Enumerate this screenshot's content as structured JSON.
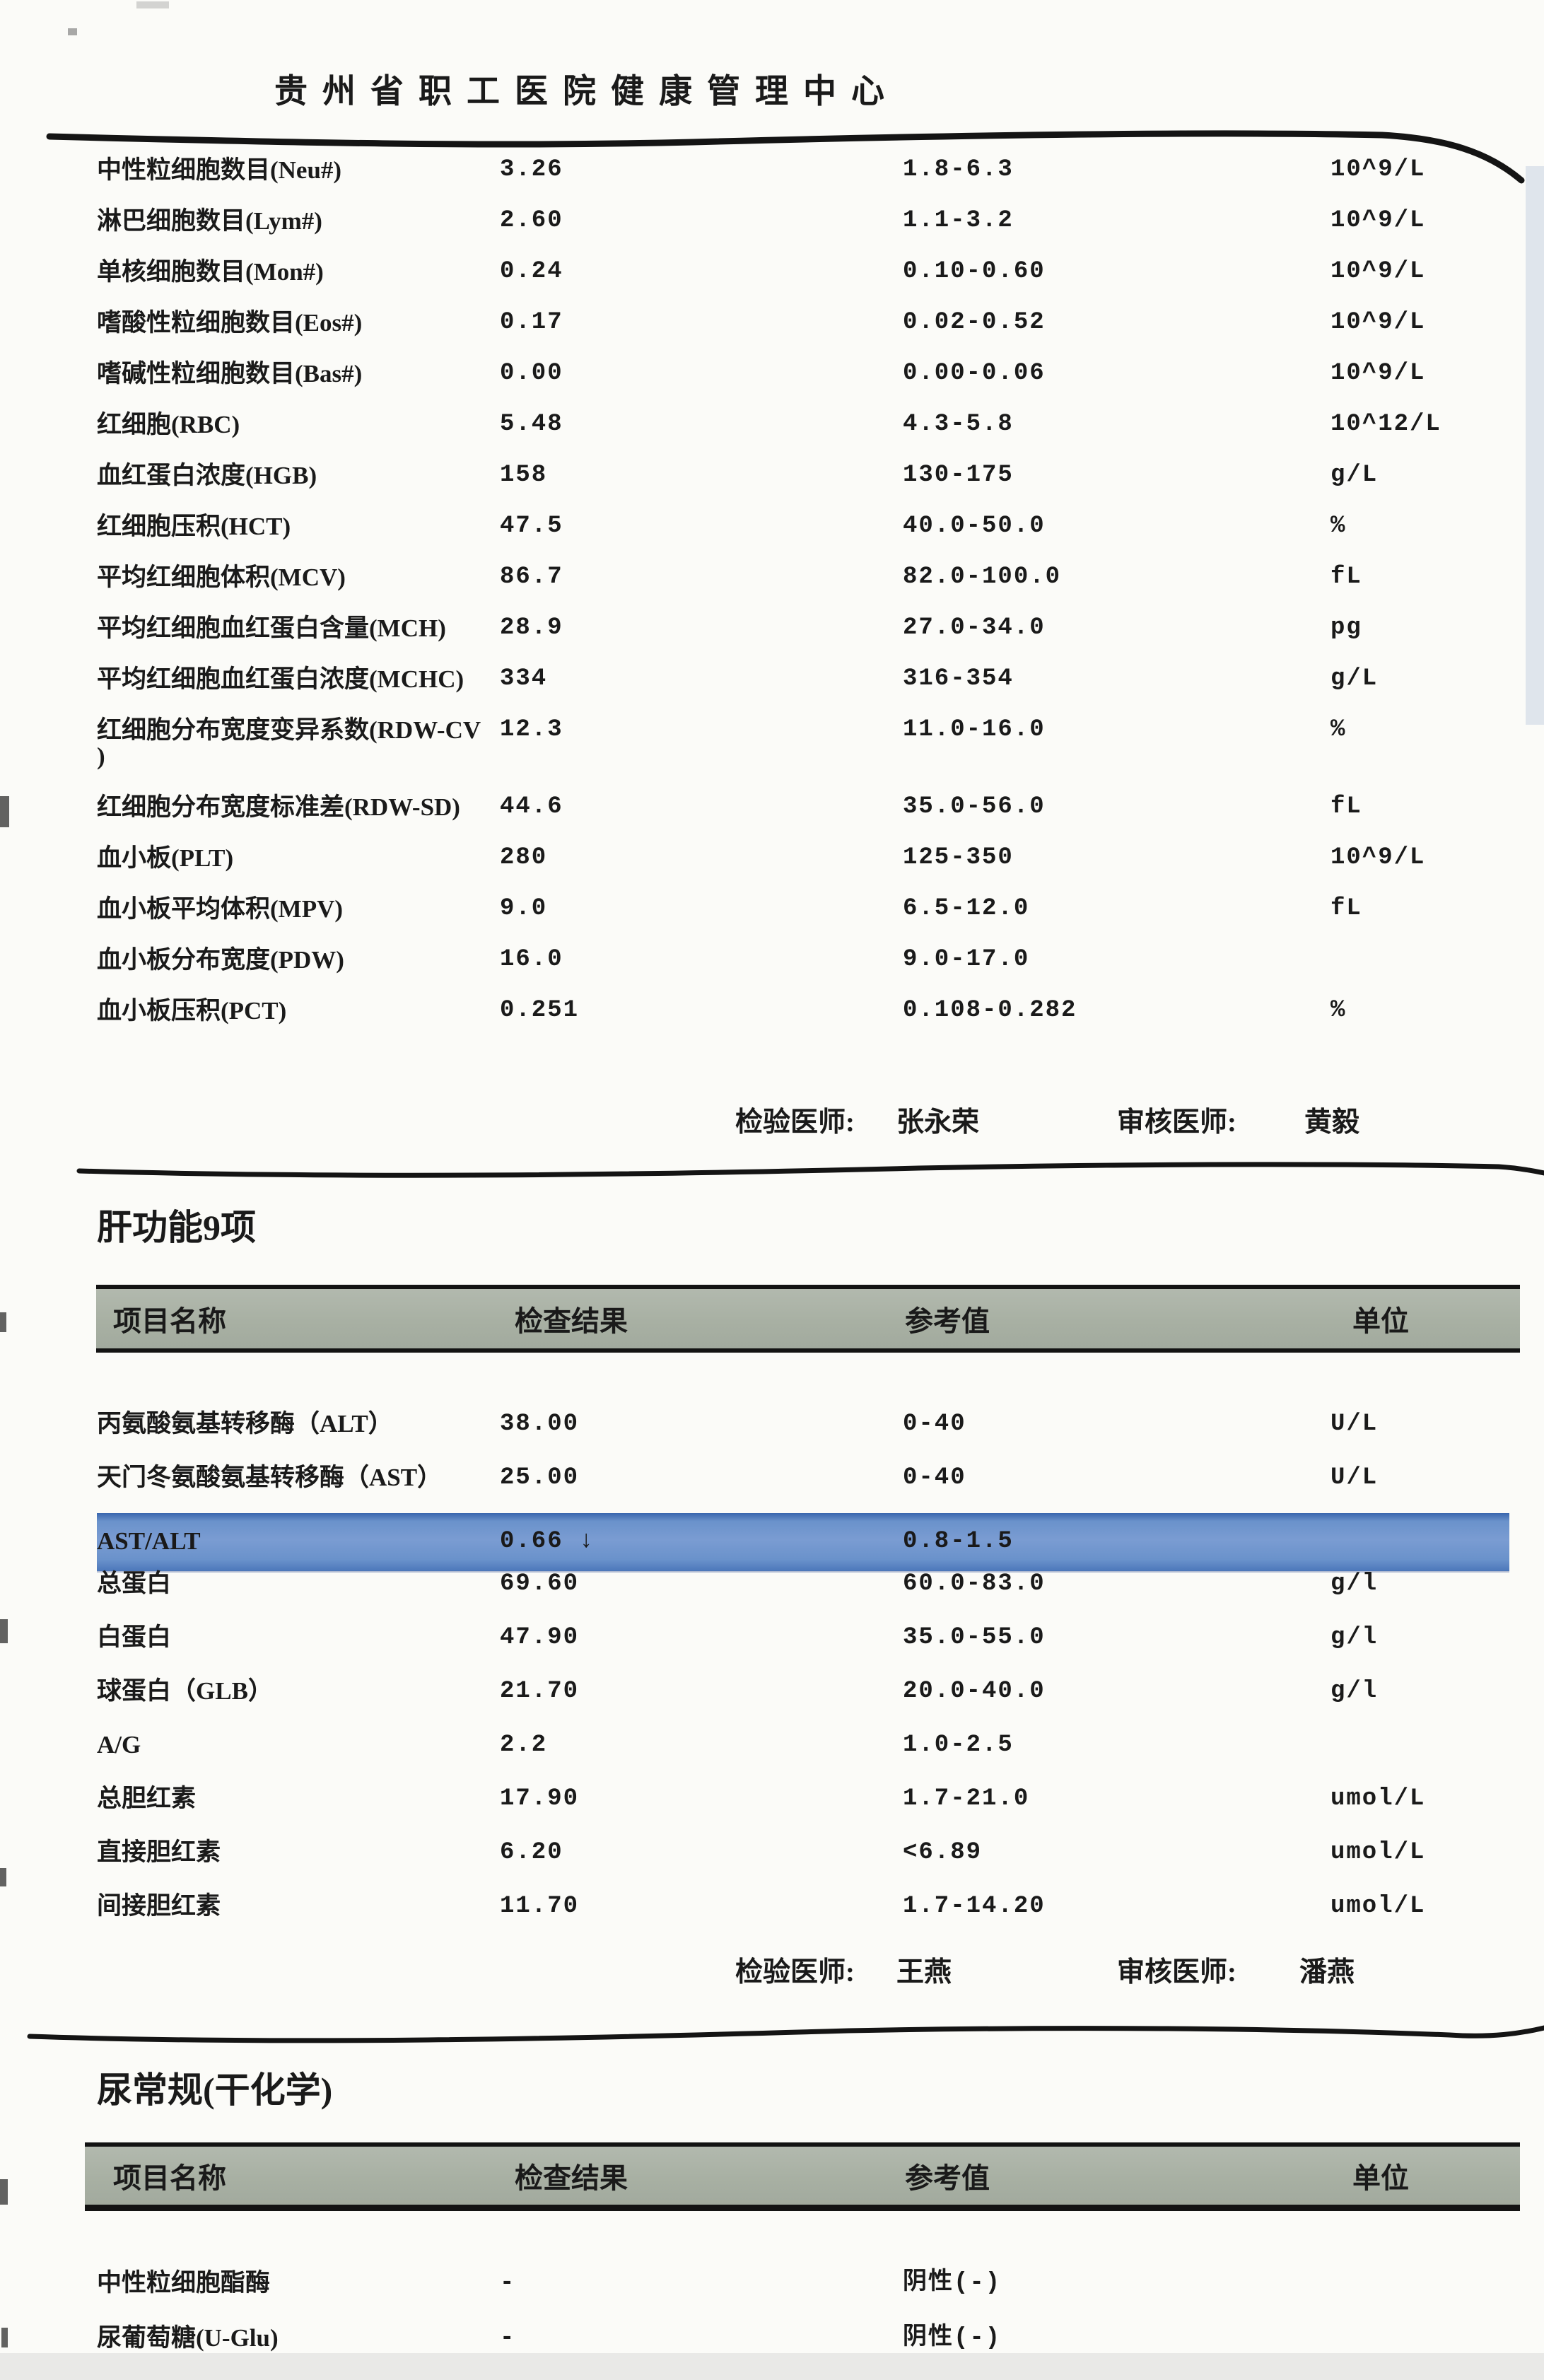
{
  "header": {
    "hospital_title": "贵州省职工医院健康管理中心"
  },
  "colors": {
    "highlight_blue": "#6a92cb",
    "header_bar_gray": "#a8b0a3",
    "rule_black": "#141414"
  },
  "tables": [
    {
      "section_title": "",
      "rows": [
        {
          "name": "中性粒细胞数目(Neu#)",
          "result": "3.26",
          "ref": "1.8-6.3",
          "unit": "10^9/L"
        },
        {
          "name": "淋巴细胞数目(Lym#)",
          "result": "2.60",
          "ref": "1.1-3.2",
          "unit": "10^9/L"
        },
        {
          "name": "单核细胞数目(Mon#)",
          "result": "0.24",
          "ref": "0.10-0.60",
          "unit": "10^9/L"
        },
        {
          "name": "嗜酸性粒细胞数目(Eos#)",
          "result": "0.17",
          "ref": "0.02-0.52",
          "unit": "10^9/L"
        },
        {
          "name": "嗜碱性粒细胞数目(Bas#)",
          "result": "0.00",
          "ref": "0.00-0.06",
          "unit": "10^9/L"
        },
        {
          "name": "红细胞(RBC)",
          "result": "5.48",
          "ref": "4.3-5.8",
          "unit": "10^12/L"
        },
        {
          "name": "血红蛋白浓度(HGB)",
          "result": "158",
          "ref": "130-175",
          "unit": "g/L"
        },
        {
          "name": "红细胞压积(HCT)",
          "result": "47.5",
          "ref": "40.0-50.0",
          "unit": "%"
        },
        {
          "name": "平均红细胞体积(MCV)",
          "result": "86.7",
          "ref": "82.0-100.0",
          "unit": "fL"
        },
        {
          "name": "平均红细胞血红蛋白含量(MCH)",
          "result": "28.9",
          "ref": "27.0-34.0",
          "unit": "pg"
        },
        {
          "name": "平均红细胞血红蛋白浓度(MCHC)",
          "result": "334",
          "ref": "316-354",
          "unit": "g/L"
        },
        {
          "name": "红细胞分布宽度变异系数(RDW-CV\n)",
          "result": "12.3",
          "ref": "11.0-16.0",
          "unit": "%"
        },
        {
          "name": "红细胞分布宽度标准差(RDW-SD)",
          "result": "44.6",
          "ref": "35.0-56.0",
          "unit": "fL"
        },
        {
          "name": "血小板(PLT)",
          "result": "280",
          "ref": "125-350",
          "unit": "10^9/L"
        },
        {
          "name": "血小板平均体积(MPV)",
          "result": "9.0",
          "ref": "6.5-12.0",
          "unit": "fL"
        },
        {
          "name": "血小板分布宽度(PDW)",
          "result": "16.0",
          "ref": "9.0-17.0",
          "unit": ""
        },
        {
          "name": "血小板压积(PCT)",
          "result": "0.251",
          "ref": "0.108-0.282",
          "unit": "%"
        }
      ],
      "signature": {
        "examiner_label": "检验医师:",
        "examiner": "张永荣",
        "reviewer_label": "审核医师:",
        "reviewer": "黄毅"
      }
    },
    {
      "section_title": "肝功能9项",
      "header": {
        "name": "项目名称",
        "result": "检查结果",
        "ref": "参考值",
        "unit": "单位"
      },
      "rows": [
        {
          "name": "丙氨酸氨基转移酶（ALT）",
          "result": "38.00",
          "ref": "0-40",
          "unit": "U/L"
        },
        {
          "name": "天门冬氨酸氨基转移酶（AST）",
          "result": "25.00",
          "ref": "0-40",
          "unit": "U/L"
        },
        {
          "name": "AST/ALT",
          "result": "0.66 ↓",
          "ref": "0.8-1.5",
          "unit": "",
          "highlight": true
        },
        {
          "name": "总蛋白",
          "result": "69.60",
          "ref": "60.0-83.0",
          "unit": "g/l"
        },
        {
          "name": "白蛋白",
          "result": "47.90",
          "ref": "35.0-55.0",
          "unit": "g/l"
        },
        {
          "name": "球蛋白（GLB）",
          "result": "21.70",
          "ref": "20.0-40.0",
          "unit": "g/l"
        },
        {
          "name": "A/G",
          "result": "2.2",
          "ref": "1.0-2.5",
          "unit": ""
        },
        {
          "name": "总胆红素",
          "result": "17.90",
          "ref": "1.7-21.0",
          "unit": "umol/L"
        },
        {
          "name": "直接胆红素",
          "result": "6.20",
          "ref": "<6.89",
          "unit": "umol/L"
        },
        {
          "name": "间接胆红素",
          "result": "11.70",
          "ref": "1.7-14.20",
          "unit": "umol/L"
        }
      ],
      "signature": {
        "examiner_label": "检验医师:",
        "examiner": "王燕",
        "reviewer_label": "审核医师:",
        "reviewer": "潘燕"
      }
    },
    {
      "section_title": "尿常规(干化学)",
      "header": {
        "name": "项目名称",
        "result": "检查结果",
        "ref": "参考值",
        "unit": "单位"
      },
      "rows": [
        {
          "name": "中性粒细胞酯酶",
          "result": "-",
          "ref": "阴性(-)",
          "unit": ""
        },
        {
          "name": "尿葡萄糖(U-Glu)",
          "result": "-",
          "ref": "阴性(-)",
          "unit": ""
        }
      ]
    }
  ]
}
